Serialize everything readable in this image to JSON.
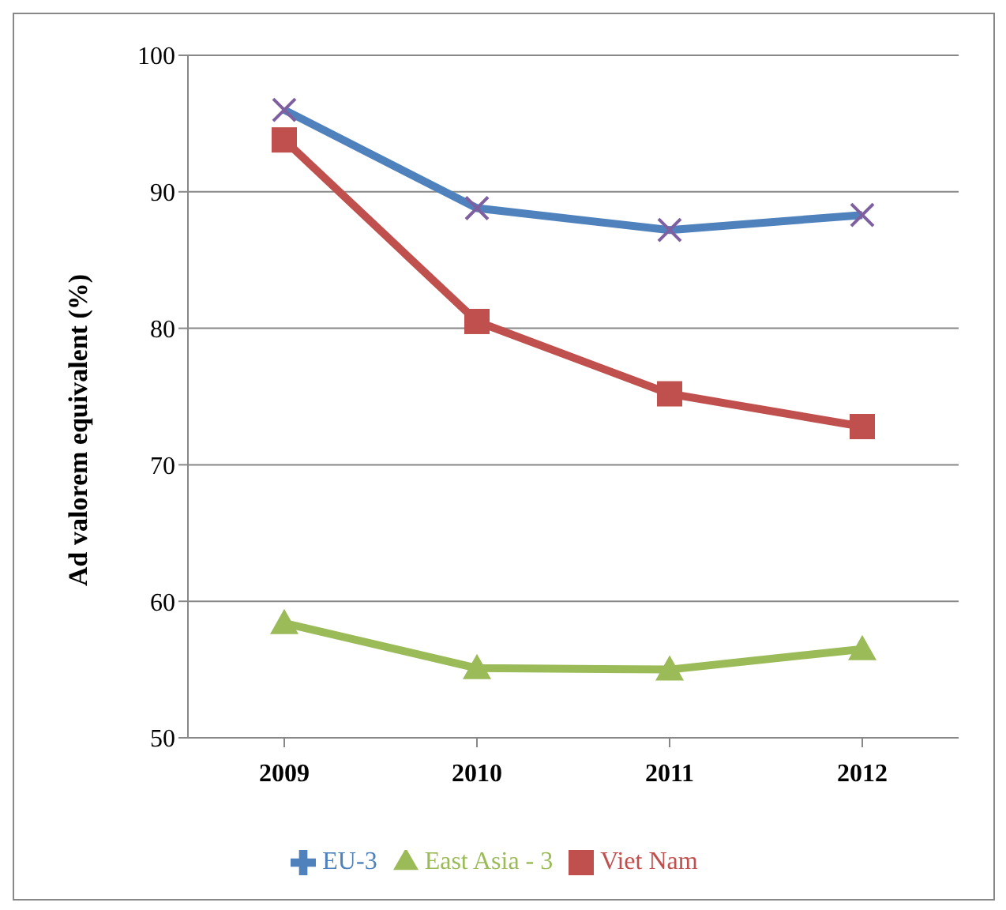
{
  "chart_data": {
    "type": "line",
    "ylabel": "Ad valorem equivalent (%)",
    "categories": [
      "2009",
      "2010",
      "2011",
      "2012"
    ],
    "series": [
      {
        "name": "Viet Nam",
        "color": "#c0504d",
        "marker": "square",
        "values": [
          93.8,
          80.5,
          75.2,
          72.8
        ]
      },
      {
        "name": "East Asia - 3",
        "color": "#9bbb59",
        "marker": "triangle",
        "values": [
          58.4,
          55.1,
          55.0,
          56.5
        ]
      },
      {
        "name": "EU-3",
        "color": "#4f81bd",
        "marker": "cross",
        "values": [
          96.0,
          88.8,
          87.2,
          88.3
        ]
      }
    ],
    "ylim": [
      50,
      100
    ],
    "yticks": [
      50,
      60,
      70,
      80,
      90,
      100
    ],
    "grid": "y",
    "legend": "bottom"
  }
}
